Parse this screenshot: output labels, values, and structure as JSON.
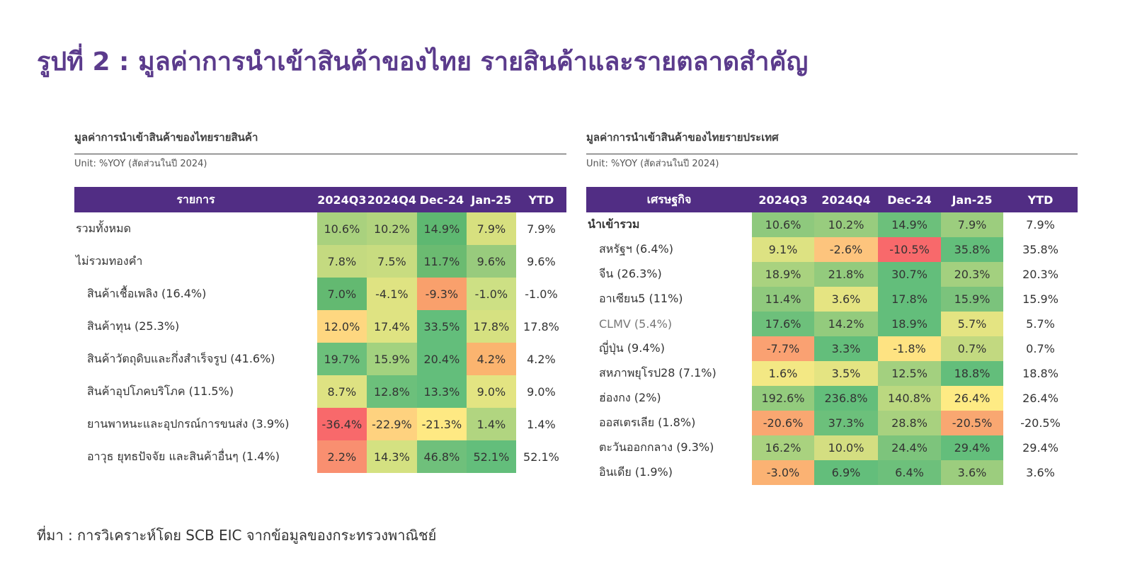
{
  "title": "รูปที่ 2 : มูลค่าการนำเข้าสินค้าของไทย รายสินค้าและรายตลาดสำคัญ",
  "source": "ที่มา : การวิเคราะห์โดย SCB EIC จากข้อมูลของกระทรวงพาณิชย์",
  "chart_data": [
    {
      "type": "table",
      "title": "มูลค่าการนำเข้าสินค้าของไทยรายสินค้า",
      "unit": "Unit: %YOY (สัดส่วนในปี 2024)",
      "header": "รายการ",
      "columns": [
        "2024Q3",
        "2024Q4",
        "Dec-24",
        "Jan-25",
        "YTD"
      ],
      "rows": [
        {
          "label": "รวมทั้งหมด",
          "values": [
            "10.6%",
            "10.2%",
            "14.9%",
            "7.9%",
            "7.9%"
          ],
          "colors": [
            "#a9d17e",
            "#b2d47e",
            "#5eb871",
            "#d7e07f"
          ]
        },
        {
          "label": "ไม่รวมทองคำ",
          "values": [
            "7.8%",
            "7.5%",
            "11.7%",
            "9.6%",
            "9.6%"
          ],
          "colors": [
            "#c4da80",
            "#c8dc80",
            "#6bbb71",
            "#98cb7d"
          ]
        },
        {
          "label": "สินค้าเชื้อเพลิง (16.4%)",
          "values": [
            "7.0%",
            "-4.1%",
            "-9.3%",
            "-1.0%",
            "-1.0%"
          ],
          "colors": [
            "#63b971",
            "#dfe382",
            "#f9a06c",
            "#cde084"
          ]
        },
        {
          "label": "สินค้าทุน (25.3%)",
          "values": [
            "12.0%",
            "17.4%",
            "33.5%",
            "17.8%",
            "17.8%"
          ],
          "colors": [
            "#fed780",
            "#dfe382",
            "#63be7b",
            "#d6e181"
          ]
        },
        {
          "label": "สินค้าวัตถุดิบและกึ่งสำเร็จรูป (41.6%)",
          "values": [
            "19.7%",
            "15.9%",
            "20.4%",
            "4.2%",
            "4.2%"
          ],
          "colors": [
            "#6cc07b",
            "#a3d27f",
            "#63be7b",
            "#fbb46f"
          ]
        },
        {
          "label": "สินค้าอุปโภคบริโภค (11.5%)",
          "values": [
            "8.7%",
            "12.8%",
            "13.3%",
            "9.0%",
            "9.0%"
          ],
          "colors": [
            "#dee282",
            "#6cc07b",
            "#63be7b",
            "#e3e482"
          ]
        },
        {
          "label": "ยานพาหนะและอุปกรณ์การขนส่ง (3.9%)",
          "values": [
            "-36.4%",
            "-22.9%",
            "-21.3%",
            "1.4%",
            "1.4%"
          ],
          "colors": [
            "#f8696b",
            "#fed27f",
            "#fee983",
            "#b1d580"
          ]
        },
        {
          "label": "อาวุธ ยุทธปัจจัย และสินค้าอื่นๆ (1.4%)",
          "values": [
            "2.2%",
            "14.3%",
            "46.8%",
            "52.1%",
            "52.1%"
          ],
          "colors": [
            "#f98f70",
            "#d4e181",
            "#6fc07b",
            "#63be7b"
          ]
        }
      ]
    },
    {
      "type": "table",
      "title": "มูลค่าการนำเข้าสินค้าของไทยรายประเทศ",
      "unit": "Unit: %YOY (สัดส่วนในปี 2024)",
      "header": "เศรษฐกิจ",
      "columns": [
        "2024Q3",
        "2024Q4",
        "Dec-24",
        "Jan-25",
        "YTD"
      ],
      "rows": [
        {
          "label": "นำเข้ารวม",
          "values": [
            "10.6%",
            "10.2%",
            "14.9%",
            "7.9%",
            "7.9%"
          ],
          "colors": [
            "#8ec97d",
            "#98cc7e",
            "#6cc07b",
            "#9ccd7e"
          ]
        },
        {
          "label": "สหรัฐฯ (6.4%)",
          "values": [
            "9.1%",
            "-2.6%",
            "-10.5%",
            "35.8%",
            "35.8%"
          ],
          "colors": [
            "#dde282",
            "#fdc47d",
            "#f8696b",
            "#63be7b"
          ]
        },
        {
          "label": "จีน (26.3%)",
          "values": [
            "18.9%",
            "21.8%",
            "30.7%",
            "20.3%",
            "20.3%"
          ],
          "colors": [
            "#a9d27f",
            "#93cb7d",
            "#63be7b",
            "#a3d07f"
          ]
        },
        {
          "label": "อาเซียน5 (11%)",
          "values": [
            "11.4%",
            "3.6%",
            "17.8%",
            "15.9%",
            "15.9%"
          ],
          "colors": [
            "#8fc97d",
            "#e5e482",
            "#63be7b",
            "#7bc37c"
          ]
        },
        {
          "label": "CLMV (5.4%)",
          "values": [
            "17.6%",
            "14.2%",
            "18.9%",
            "5.7%",
            "5.7%"
          ],
          "colors": [
            "#6dc07b",
            "#93cb7d",
            "#63be7b",
            "#e4e482"
          ]
        },
        {
          "label": "ญี่ปุ่น (9.4%)",
          "values": [
            "-7.7%",
            "3.3%",
            "-1.8%",
            "0.7%",
            "0.7%"
          ],
          "colors": [
            "#faa172",
            "#63be7b",
            "#fee382",
            "#c2d980"
          ]
        },
        {
          "label": "สหภาพยุโรป28 (7.1%)",
          "values": [
            "1.6%",
            "3.5%",
            "12.5%",
            "18.8%",
            "18.8%"
          ],
          "colors": [
            "#f3e884",
            "#e4e482",
            "#a3d07f",
            "#63be7b"
          ]
        },
        {
          "label": "ฮ่องกง (2%)",
          "values": [
            "192.6%",
            "236.8%",
            "140.8%",
            "26.4%",
            "26.4%"
          ],
          "colors": [
            "#93cb7d",
            "#63be7b",
            "#bbd880",
            "#feeb84"
          ]
        },
        {
          "label": "ออสเตรเลีย (1.8%)",
          "values": [
            "-20.6%",
            "37.3%",
            "28.8%",
            "-20.5%",
            "-20.5%"
          ],
          "colors": [
            "#f9a771",
            "#6cc07b",
            "#a8d17f",
            "#f9a771"
          ]
        },
        {
          "label": "ตะวันออกกลาง (9.3%)",
          "values": [
            "16.2%",
            "10.0%",
            "24.4%",
            "29.4%",
            "29.4%"
          ],
          "colors": [
            "#a9d27f",
            "#d4de81",
            "#7dc47c",
            "#63be7b"
          ]
        },
        {
          "label": "อินเดีย (1.9%)",
          "values": [
            "-3.0%",
            "6.9%",
            "6.4%",
            "3.6%",
            "3.6%"
          ],
          "colors": [
            "#fbb273",
            "#63be7b",
            "#6dc07b",
            "#9ccd7e"
          ]
        }
      ]
    }
  ]
}
